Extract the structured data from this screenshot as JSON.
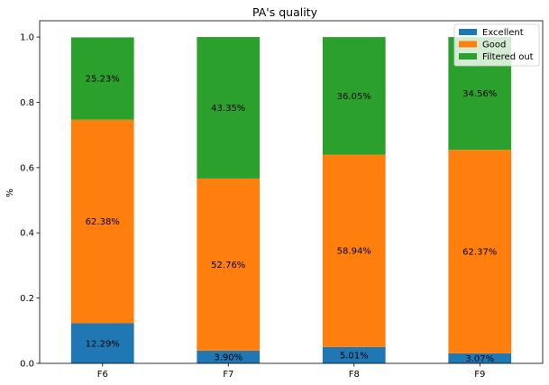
{
  "chart_data": {
    "type": "bar",
    "stacked": true,
    "title": "PA's quality",
    "xlabel": "",
    "ylabel": "%",
    "ylim": [
      0,
      1.05
    ],
    "yticks": [
      0.0,
      0.2,
      0.4,
      0.6,
      0.8,
      1.0
    ],
    "ytick_labels": [
      "0.0",
      "0.2",
      "0.4",
      "0.6",
      "0.8",
      "1.0"
    ],
    "categories": [
      "F6",
      "F7",
      "F8",
      "F9"
    ],
    "series": [
      {
        "name": "Excellent",
        "color": "#1f77b4",
        "values": [
          0.1229,
          0.039,
          0.0501,
          0.0307
        ],
        "labels": [
          "12.29%",
          "3.90%",
          "5.01%",
          "3.07%"
        ]
      },
      {
        "name": "Good",
        "color": "#ff7f0e",
        "values": [
          0.6238,
          0.5276,
          0.5894,
          0.6237
        ],
        "labels": [
          "62.38%",
          "52.76%",
          "58.94%",
          "62.37%"
        ]
      },
      {
        "name": "Filtered out",
        "color": "#2ca02c",
        "values": [
          0.2523,
          0.4335,
          0.3605,
          0.3456
        ],
        "labels": [
          "25.23%",
          "43.35%",
          "36.05%",
          "34.56%"
        ]
      }
    ],
    "legend_position": "top-right",
    "grid": false
  }
}
